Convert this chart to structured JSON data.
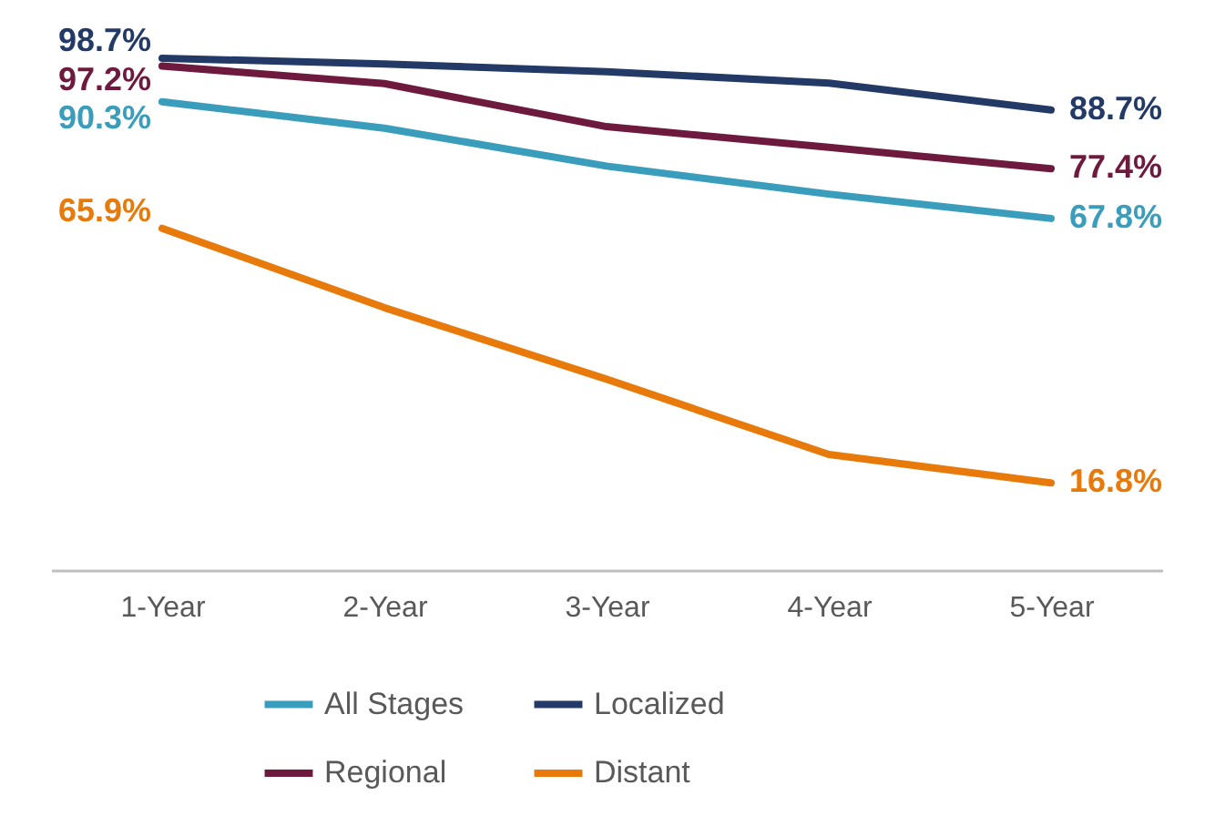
{
  "chart_data": {
    "type": "line",
    "categories": [
      "1-Year",
      "2-Year",
      "3-Year",
      "4-Year",
      "5-Year"
    ],
    "legend": "bottom",
    "grid": false,
    "series": [
      {
        "name": "All Stages",
        "color": "#3a9dbb",
        "values": [
          90.3,
          85.2,
          77.9,
          72.5,
          67.8
        ],
        "value_labels": [
          "90.3%",
          null,
          null,
          null,
          "67.8%"
        ]
      },
      {
        "name": "Localized",
        "color": "#233a66",
        "values": [
          98.7,
          97.6,
          96.1,
          93.9,
          88.7
        ],
        "value_labels": [
          "98.7%",
          null,
          null,
          null,
          "88.7%"
        ]
      },
      {
        "name": "Regional",
        "color": "#6e1a3f",
        "values": [
          97.2,
          93.8,
          85.5,
          81.5,
          77.4
        ],
        "value_labels": [
          "97.2%",
          null,
          null,
          null,
          "77.4%"
        ]
      },
      {
        "name": "Distant",
        "color": "#e87a0b",
        "values": [
          65.9,
          50.6,
          36.8,
          22.3,
          16.8
        ],
        "value_labels": [
          "65.9%",
          null,
          null,
          null,
          "16.8%"
        ]
      }
    ]
  }
}
